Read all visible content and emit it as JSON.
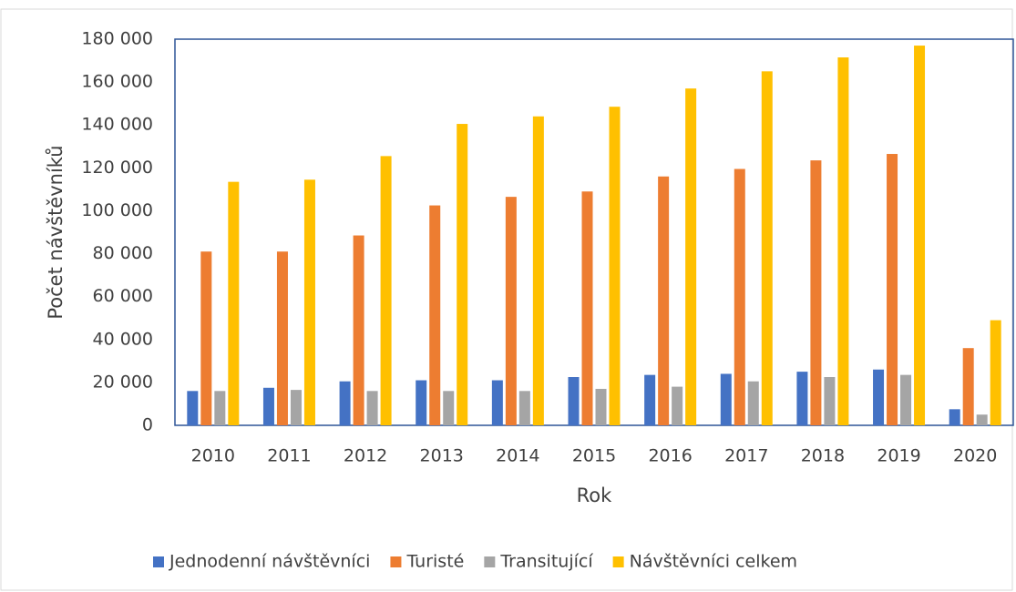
{
  "chart_data": {
    "type": "bar",
    "categories": [
      "2010",
      "2011",
      "2012",
      "2013",
      "2014",
      "2015",
      "2016",
      "2017",
      "2018",
      "2019",
      "2020"
    ],
    "series": [
      {
        "name": "Jednodenní návštěvníci",
        "color": "#4472c4",
        "values": [
          16000,
          17500,
          20500,
          21000,
          21000,
          22500,
          23500,
          24000,
          25000,
          26000,
          7500
        ]
      },
      {
        "name": "Turisté",
        "color": "#ed7d31",
        "values": [
          81000,
          81000,
          88500,
          102500,
          106500,
          109000,
          116000,
          119500,
          123500,
          126500,
          36000
        ]
      },
      {
        "name": "Transitující",
        "color": "#a5a5a5",
        "values": [
          16000,
          16500,
          16000,
          16000,
          16000,
          17000,
          18000,
          20500,
          22500,
          23500,
          5000
        ]
      },
      {
        "name": "Návštěvníci celkem",
        "color": "#ffc000",
        "values": [
          113500,
          114500,
          125500,
          140500,
          144000,
          148500,
          157000,
          165000,
          171500,
          177000,
          49000
        ]
      }
    ],
    "xlabel": "Rok",
    "ylabel": "Počet návštěvníků",
    "ylim": [
      0,
      180000
    ],
    "yticks": [
      0,
      {
        "value": 20000,
        "label": "20 000"
      },
      {
        "value": 40000,
        "label": "40 000"
      },
      {
        "value": 60000,
        "label": "60 000"
      },
      {
        "value": 80000,
        "label": "80 000"
      },
      {
        "value": 100000,
        "label": "100 000"
      },
      {
        "value": 120000,
        "label": "120 000"
      },
      {
        "value": 140000,
        "label": "140 000"
      },
      {
        "value": 160000,
        "label": "160 000"
      },
      {
        "value": 180000,
        "label": "180 000"
      }
    ],
    "grid": false,
    "legend": "bottom"
  }
}
